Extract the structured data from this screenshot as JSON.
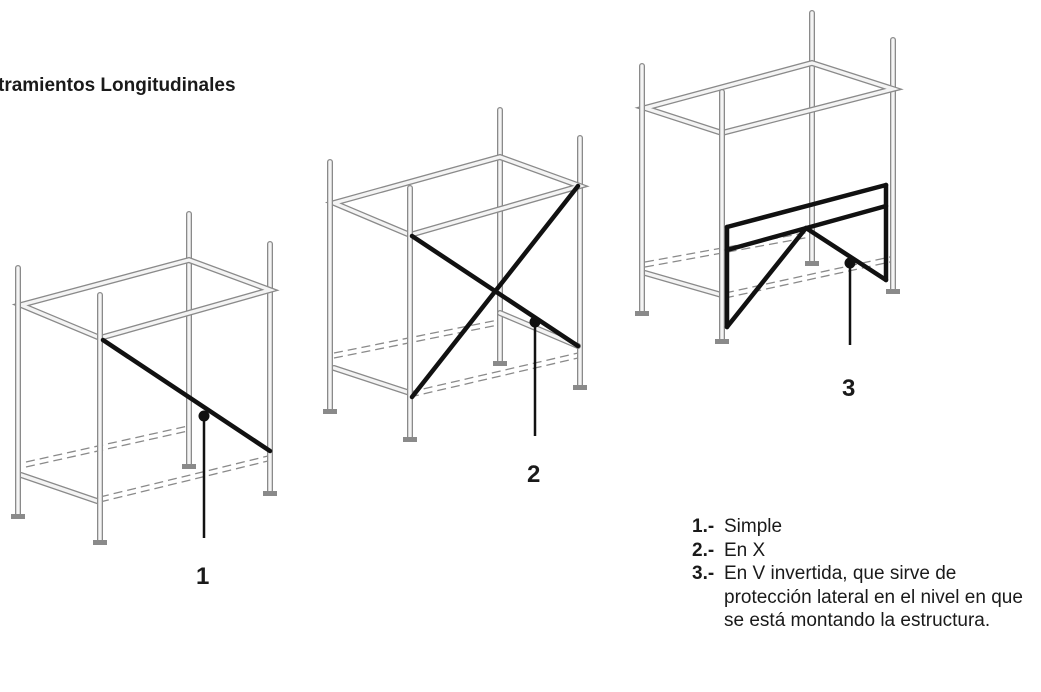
{
  "title": "tramientos Longitudinales",
  "callouts": [
    "1",
    "2",
    "3"
  ],
  "legend": [
    {
      "key": "1.-",
      "text": "Simple"
    },
    {
      "key": "2.-",
      "text": "En X"
    },
    {
      "key": "3.-",
      "text": "En V invertida, que sirve de protección lateral en el nivel en que se está montando la estructura."
    }
  ],
  "colors": {
    "frame": "#8a8a8a",
    "frame_fill": "#f4f4f4",
    "brace": "#111111",
    "text": "#1a1a1a"
  }
}
